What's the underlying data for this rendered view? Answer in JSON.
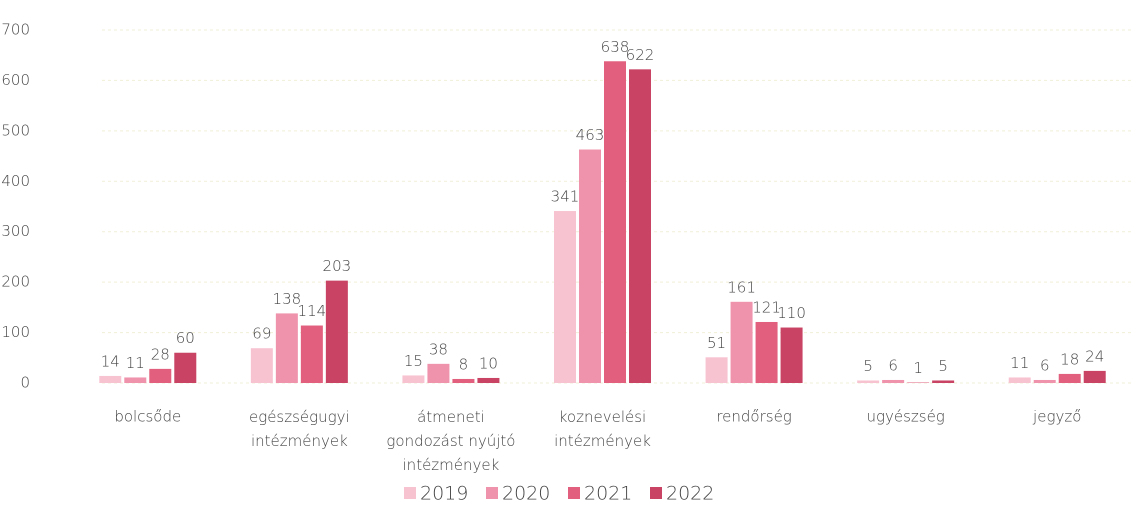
{
  "chart_data": {
    "type": "bar",
    "categories": [
      "bolcsőde",
      "egészségugyi intézmények",
      "átmeneti gondozást nyújtó intézmények",
      "koznevelési intézmények",
      "rendőrség",
      "ugyészség",
      "jegyző"
    ],
    "series": [
      {
        "name": "2019",
        "color": "#f7c3d1",
        "values": [
          14,
          69,
          15,
          341,
          51,
          5,
          11
        ]
      },
      {
        "name": "2020",
        "color": "#ef93ac",
        "values": [
          11,
          138,
          38,
          463,
          161,
          6,
          6
        ]
      },
      {
        "name": "2021",
        "color": "#e2607e",
        "values": [
          28,
          114,
          8,
          638,
          121,
          1,
          18
        ]
      },
      {
        "name": "2022",
        "color": "#c84364",
        "values": [
          60,
          203,
          10,
          622,
          110,
          5,
          24
        ]
      }
    ],
    "ylim": [
      0,
      700
    ],
    "yticks": [
      0,
      100,
      200,
      300,
      400,
      500,
      600,
      700
    ],
    "grid": true,
    "legend": "bottom"
  }
}
